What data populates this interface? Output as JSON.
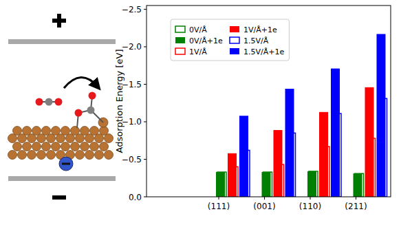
{
  "chart_data": {
    "type": "bar",
    "ylabel": "Adsorption Energy [eV]",
    "categories": [
      "(111)",
      "(001)",
      "(110)",
      "(211)"
    ],
    "series": [
      {
        "name": "0V/Å",
        "color": "#008000",
        "type": "hollow_bar",
        "values": [
          -0.33,
          -0.33,
          -0.34,
          -0.31
        ]
      },
      {
        "name": "0V/Å+1e",
        "color": "#008000",
        "type": "bar",
        "values": [
          -0.33,
          -0.33,
          -0.34,
          -0.31
        ]
      },
      {
        "name": "1V/Å",
        "color": "#ff0000",
        "type": "hollow_bar",
        "values": [
          -0.4,
          -0.43,
          -0.67,
          -0.78
        ]
      },
      {
        "name": "1V/Å+1e",
        "color": "#ff0000",
        "type": "bar",
        "values": [
          -0.58,
          -0.89,
          -1.13,
          -1.46
        ]
      },
      {
        "name": "1.5V/Å",
        "color": "#0000ff",
        "type": "hollow_bar",
        "values": [
          -0.62,
          -0.85,
          -1.11,
          -1.31
        ]
      },
      {
        "name": "1.5V/Å+1e",
        "color": "#0000ff",
        "type": "bar",
        "values": [
          -1.08,
          -1.44,
          -1.71,
          -2.17
        ]
      }
    ],
    "ylim": [
      0,
      -2.55
    ],
    "yticks": [
      {
        "value": 0,
        "label": "0.0"
      },
      {
        "value": -0.5,
        "label": "−0.5"
      },
      {
        "value": -1,
        "label": "−1.0"
      },
      {
        "value": -1.5,
        "label": "−1.5"
      },
      {
        "value": -2,
        "label": "−2.0"
      },
      {
        "value": -2.5,
        "label": "−2.5"
      }
    ],
    "legend": "upper left",
    "grid": false
  }
}
